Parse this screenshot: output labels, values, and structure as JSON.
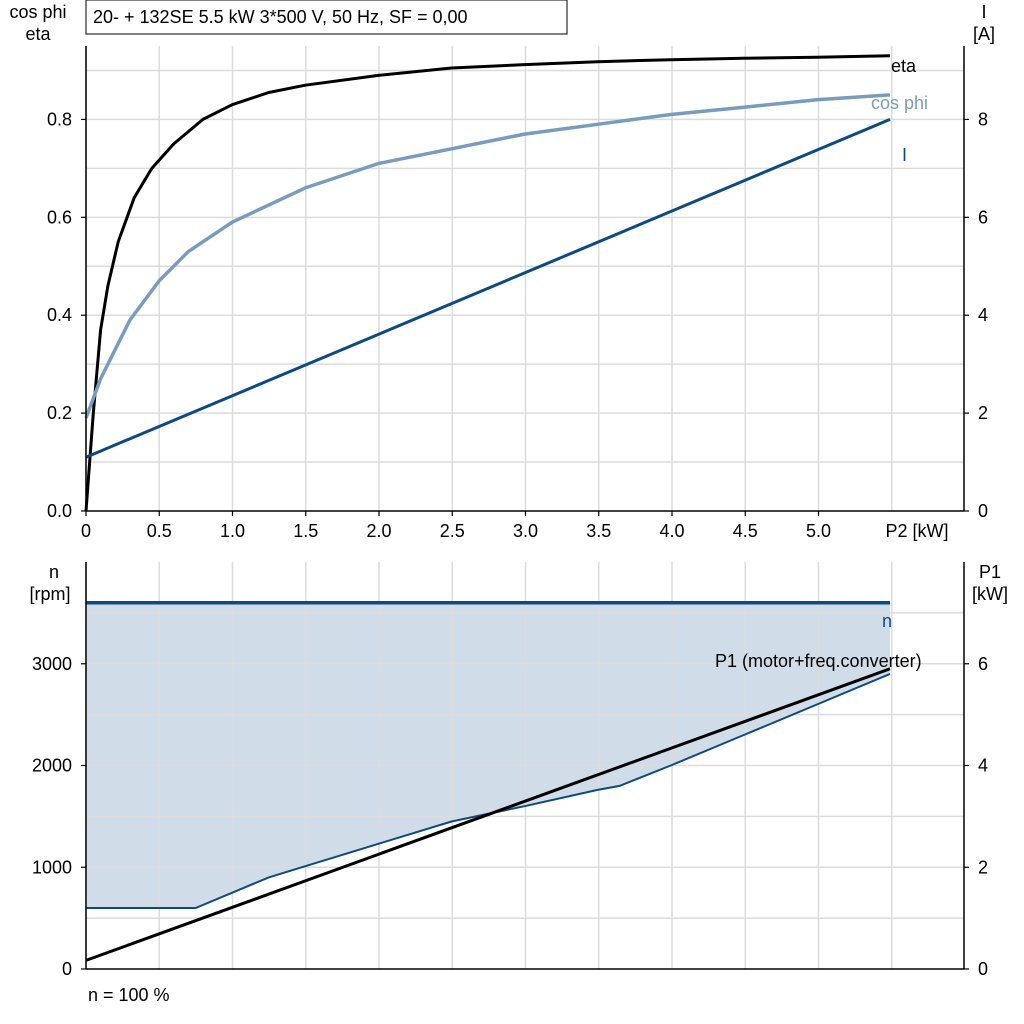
{
  "title": "20- + 132SE   5.5 kW   3*500 V, 50 Hz, SF = 0,00",
  "footer": "n = 100 %",
  "colors": {
    "eta": "#000000",
    "cos_phi_line": "#7a9cbc",
    "cos_phi_label": "#7a9cbc",
    "current": "#0e4a80",
    "speed": "#0e4a80",
    "speed_fill": "#d0dde8",
    "p1": "#000000",
    "grid": "#dcdcdc",
    "axis": "#000000"
  },
  "chart_data": [
    {
      "type": "line",
      "name": "top",
      "x_axis_label": "P2 [kW]",
      "x_ticks": [
        "0",
        "0.5",
        "1.0",
        "1.5",
        "2.0",
        "2.5",
        "3.0",
        "3.5",
        "4.0",
        "4.5",
        "5.0"
      ],
      "xlim": [
        0,
        5.5
      ],
      "left_axis_label": [
        "cos phi",
        "eta"
      ],
      "left_ticks": [
        "0.0",
        "0.2",
        "0.4",
        "0.6",
        "0.8"
      ],
      "left_ylim": [
        0,
        0.95
      ],
      "right_axis_label": [
        "I",
        "[A]"
      ],
      "right_ticks": [
        "0",
        "2",
        "4",
        "6",
        "8"
      ],
      "right_ylim": [
        0,
        9.5
      ],
      "grid": true,
      "series": [
        {
          "name": "eta",
          "axis": "left",
          "x": [
            0,
            0.05,
            0.1,
            0.15,
            0.22,
            0.33,
            0.45,
            0.6,
            0.8,
            1.0,
            1.25,
            1.5,
            2.0,
            2.5,
            3.0,
            3.5,
            4.0,
            4.5,
            5.0,
            5.5
          ],
          "y": [
            0.0,
            0.2,
            0.37,
            0.46,
            0.55,
            0.64,
            0.7,
            0.75,
            0.8,
            0.83,
            0.855,
            0.87,
            0.89,
            0.905,
            0.912,
            0.918,
            0.922,
            0.925,
            0.927,
            0.93
          ]
        },
        {
          "name": "cos phi",
          "axis": "left",
          "x": [
            0,
            0.05,
            0.1,
            0.2,
            0.3,
            0.4,
            0.5,
            0.7,
            1.0,
            1.5,
            2.0,
            2.5,
            3.0,
            3.5,
            4.0,
            4.5,
            5.0,
            5.5
          ],
          "y": [
            0.19,
            0.23,
            0.27,
            0.33,
            0.39,
            0.43,
            0.47,
            0.53,
            0.59,
            0.66,
            0.71,
            0.74,
            0.77,
            0.79,
            0.81,
            0.825,
            0.84,
            0.85
          ]
        },
        {
          "name": "I",
          "axis": "right",
          "x": [
            0,
            5.5
          ],
          "y": [
            1.1,
            8.0
          ]
        }
      ]
    },
    {
      "type": "area",
      "name": "bottom",
      "left_axis_label": [
        "n",
        "[rpm]"
      ],
      "left_ticks": [
        "0",
        "1000",
        "2000",
        "3000"
      ],
      "left_ylim": [
        0,
        4000
      ],
      "right_axis_label": [
        "P1",
        "[kW]"
      ],
      "right_ticks": [
        "0",
        "2",
        "4",
        "6"
      ],
      "right_ylim": [
        0,
        8
      ],
      "xlim": [
        0,
        5.5
      ],
      "grid": true,
      "series": [
        {
          "name": "n",
          "axis": "left",
          "x": [
            0,
            5.5
          ],
          "y": [
            3600,
            3600
          ]
        },
        {
          "name": "n lower",
          "axis": "left",
          "x": [
            0,
            0.75,
            1.0,
            1.25,
            1.5,
            2.0,
            2.5,
            3.0,
            3.5,
            3.65,
            4.0,
            4.5,
            5.0,
            5.5
          ],
          "y": [
            600,
            600,
            750,
            900,
            1010,
            1230,
            1450,
            1600,
            1760,
            1800,
            2000,
            2300,
            2600,
            2900
          ]
        },
        {
          "name": "P1 (motor+freq.converter)",
          "axis": "right",
          "x": [
            0,
            5.5
          ],
          "y": [
            0.17,
            5.9
          ]
        }
      ]
    }
  ],
  "labels": {
    "eta": "eta",
    "cos_phi": "cos phi",
    "current": "I",
    "speed": "n",
    "p1": "P1 (motor+freq.converter)"
  }
}
